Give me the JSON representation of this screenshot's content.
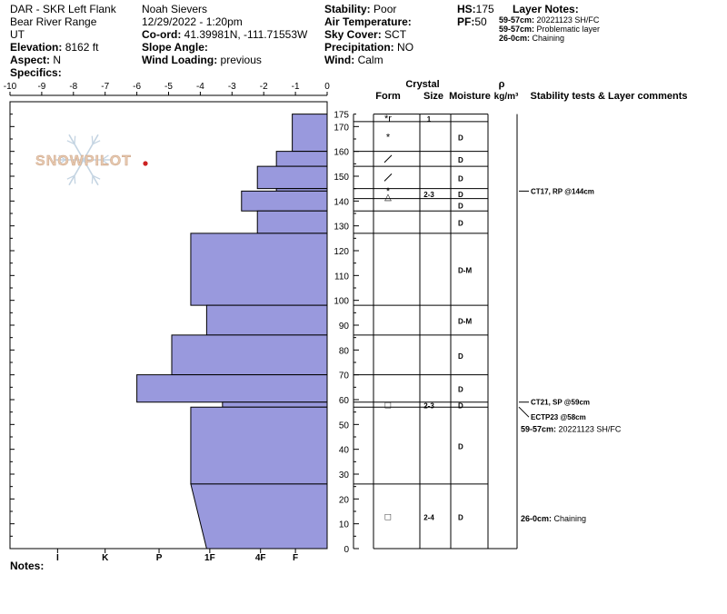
{
  "header": {
    "col1": {
      "location": "DAR - SKR Left Flank",
      "range": "Bear River Range",
      "state": "UT",
      "elevation_label": "Elevation:",
      "elevation_value": "8162 ft",
      "aspect_label": "Aspect:",
      "aspect_value": "N",
      "specifics_label": "Specifics:"
    },
    "col2": {
      "observer": "Noah Sievers",
      "datetime": "12/29/2022 - 1:20pm",
      "coord_label": "Co-ord:",
      "coord_value": "41.39981N, -111.71553W",
      "slope_label": "Slope Angle:",
      "slope_value": "",
      "wind_loading_label": "Wind Loading:",
      "wind_loading_value": "previous"
    },
    "col3": {
      "stability_label": "Stability:",
      "stability_value": "Poor",
      "air_temp_label": "Air Temperature:",
      "air_temp_value": "",
      "sky_label": "Sky Cover:",
      "sky_value": "SCT",
      "precip_label": "Precipitation:",
      "precip_value": "NO",
      "wind_label": "Wind:",
      "wind_value": "Calm"
    },
    "col4": {
      "hs_label": "HS:",
      "hs_value": "175",
      "pf_label": "PF:",
      "pf_value": "50"
    },
    "layer_notes": {
      "title": "Layer Notes:",
      "items": [
        {
          "label": "59-57cm:",
          "text": "20221123 SH/FC"
        },
        {
          "label": "59-57cm:",
          "text": "Problematic layer"
        },
        {
          "label": "26-0cm:",
          "text": "Chaining"
        }
      ]
    }
  },
  "notes_label": "Notes:",
  "watermark": "SNOWPILOT",
  "chart_data": {
    "type": "snow_profile",
    "depth_axis": {
      "min": 0,
      "max": 180,
      "ticks": [
        0,
        10,
        20,
        30,
        40,
        50,
        60,
        70,
        80,
        90,
        100,
        110,
        120,
        130,
        140,
        150,
        160,
        170,
        175
      ]
    },
    "temperature_axis": {
      "min": -10,
      "max": 0,
      "ticks": [
        "-10",
        "-9",
        "-8",
        "-7",
        "-6",
        "-5",
        "-4",
        "-3",
        "-2",
        "-1",
        "0"
      ]
    },
    "hardness_axis": {
      "labels": [
        "I",
        "K",
        "P",
        "1F",
        "4F",
        "F"
      ],
      "values": [
        -8.5,
        -7,
        -5.3,
        -3.7,
        -2.1,
        -1
      ]
    },
    "hardness_profile": [
      {
        "top": 175,
        "bottom": 160,
        "h": -1.1
      },
      {
        "top": 160,
        "bottom": 154,
        "h": -1.6
      },
      {
        "top": 154,
        "bottom": 145,
        "h": -2.2
      },
      {
        "top": 145,
        "bottom": 144,
        "h": -1.6
      },
      {
        "top": 144,
        "bottom": 136,
        "h": -2.7
      },
      {
        "top": 136,
        "bottom": 127,
        "h": -2.2
      },
      {
        "top": 127,
        "bottom": 98,
        "h": -4.3
      },
      {
        "top": 98,
        "bottom": 86,
        "h": -3.8
      },
      {
        "top": 86,
        "bottom": 70,
        "h": -4.9
      },
      {
        "top": 70,
        "bottom": 59,
        "h": -6.0
      },
      {
        "top": 59,
        "bottom": 57,
        "h": -3.3
      },
      {
        "top": 57,
        "bottom": 26,
        "h": -4.3
      },
      {
        "top": 26,
        "bottom": 0,
        "h": -4.3,
        "h_bottom": -3.8
      }
    ],
    "columns": {
      "crystal_title": "Crystal",
      "form": "Form",
      "size": "Size",
      "moisture": "Moisture",
      "rho": "ρ",
      "rho_unit": "kg/m³",
      "stability": "Stability tests & Layer comments"
    },
    "layers": [
      {
        "top": 175,
        "bottom": 172,
        "form": "*r",
        "size": "1",
        "moisture": ""
      },
      {
        "top": 172,
        "bottom": 160,
        "form": "*",
        "size": "",
        "moisture": "D"
      },
      {
        "top": 160,
        "bottom": 154,
        "form": "/",
        "size": "",
        "moisture": "D"
      },
      {
        "top": 154,
        "bottom": 145,
        "form": "/",
        "size": "",
        "moisture": "D"
      },
      {
        "top": 145,
        "bottom": 141,
        "form": "*/△",
        "size": "2-3",
        "moisture": "D"
      },
      {
        "top": 141,
        "bottom": 136,
        "form": "",
        "size": "",
        "moisture": "D"
      },
      {
        "top": 136,
        "bottom": 127,
        "form": "",
        "size": "",
        "moisture": "D"
      },
      {
        "top": 127,
        "bottom": 98,
        "form": "",
        "size": "",
        "moisture": "D-M"
      },
      {
        "top": 98,
        "bottom": 86,
        "form": "",
        "size": "",
        "moisture": "D-M"
      },
      {
        "top": 86,
        "bottom": 70,
        "form": "",
        "size": "",
        "moisture": "D"
      },
      {
        "top": 70,
        "bottom": 59,
        "form": "",
        "size": "",
        "moisture": "D"
      },
      {
        "top": 59,
        "bottom": 57,
        "form": "□",
        "size": "2-3",
        "moisture": "D"
      },
      {
        "top": 57,
        "bottom": 26,
        "form": "",
        "size": "",
        "moisture": "D"
      },
      {
        "top": 26,
        "bottom": 0,
        "form": "□",
        "size": "2-4",
        "moisture": "D"
      }
    ],
    "stability_tests": [
      {
        "depth": 144,
        "text": "CT17, RP @144cm"
      },
      {
        "depth": 59,
        "text": "CT21, SP @59cm"
      },
      {
        "depth": 57,
        "text": "ECTP23 @58cm"
      }
    ],
    "layer_comments": [
      {
        "depth": 47,
        "label": "59-57cm:",
        "text": "20221123 SH/FC"
      },
      {
        "depth": 11,
        "label": "26-0cm:",
        "text": "Chaining"
      }
    ],
    "fill_color": "#9999dd",
    "accent_color": "#cc2222"
  }
}
